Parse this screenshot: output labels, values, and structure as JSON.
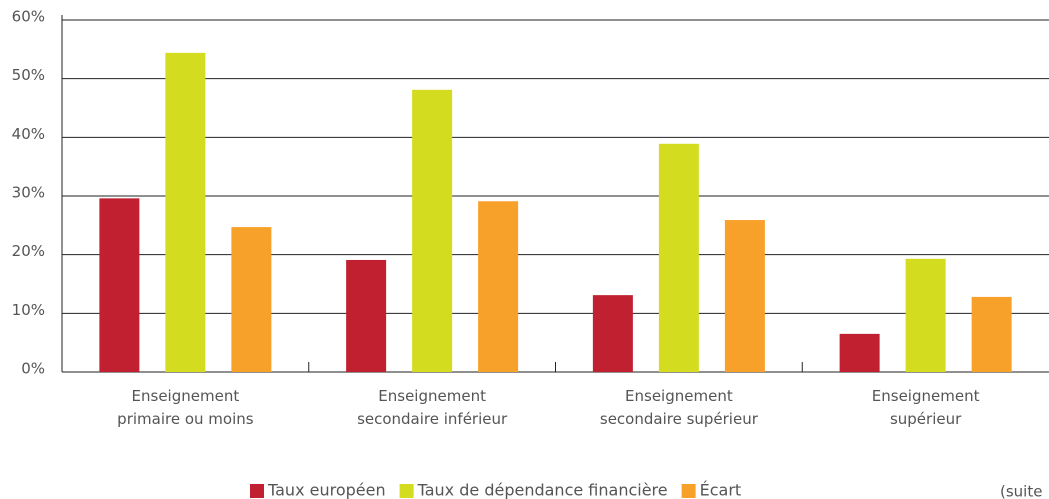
{
  "chart_data": {
    "type": "bar",
    "categories": [
      "Enseignement\nprimaire ou moins",
      "Enseignement\nsecondaire inférieur",
      "Enseignement\nsecondaire supérieur",
      "Enseignement\nsupérieur"
    ],
    "series": [
      {
        "name": "Taux européen",
        "color": "#c0202f",
        "values": [
          29.6,
          19.1,
          13.1,
          6.5
        ]
      },
      {
        "name": "Taux de dépendance financière",
        "color": "#d4dc20",
        "values": [
          54.4,
          48.1,
          38.9,
          19.3
        ]
      },
      {
        "name": "Écart",
        "color": "#f7a02a",
        "values": [
          24.7,
          29.1,
          25.9,
          12.8
        ]
      }
    ],
    "ylim": [
      0,
      60
    ],
    "yticks": [
      {
        "value": 0,
        "label": "0%"
      },
      {
        "value": 10,
        "label": "10%"
      },
      {
        "value": 20,
        "label": "20%"
      },
      {
        "value": 30,
        "label": "30%"
      },
      {
        "value": 40,
        "label": "40%"
      },
      {
        "value": 50,
        "label": "50%"
      },
      {
        "value": 60,
        "label": "60%"
      }
    ],
    "grid": true,
    "legend": "bottom",
    "note": "(suite"
  }
}
